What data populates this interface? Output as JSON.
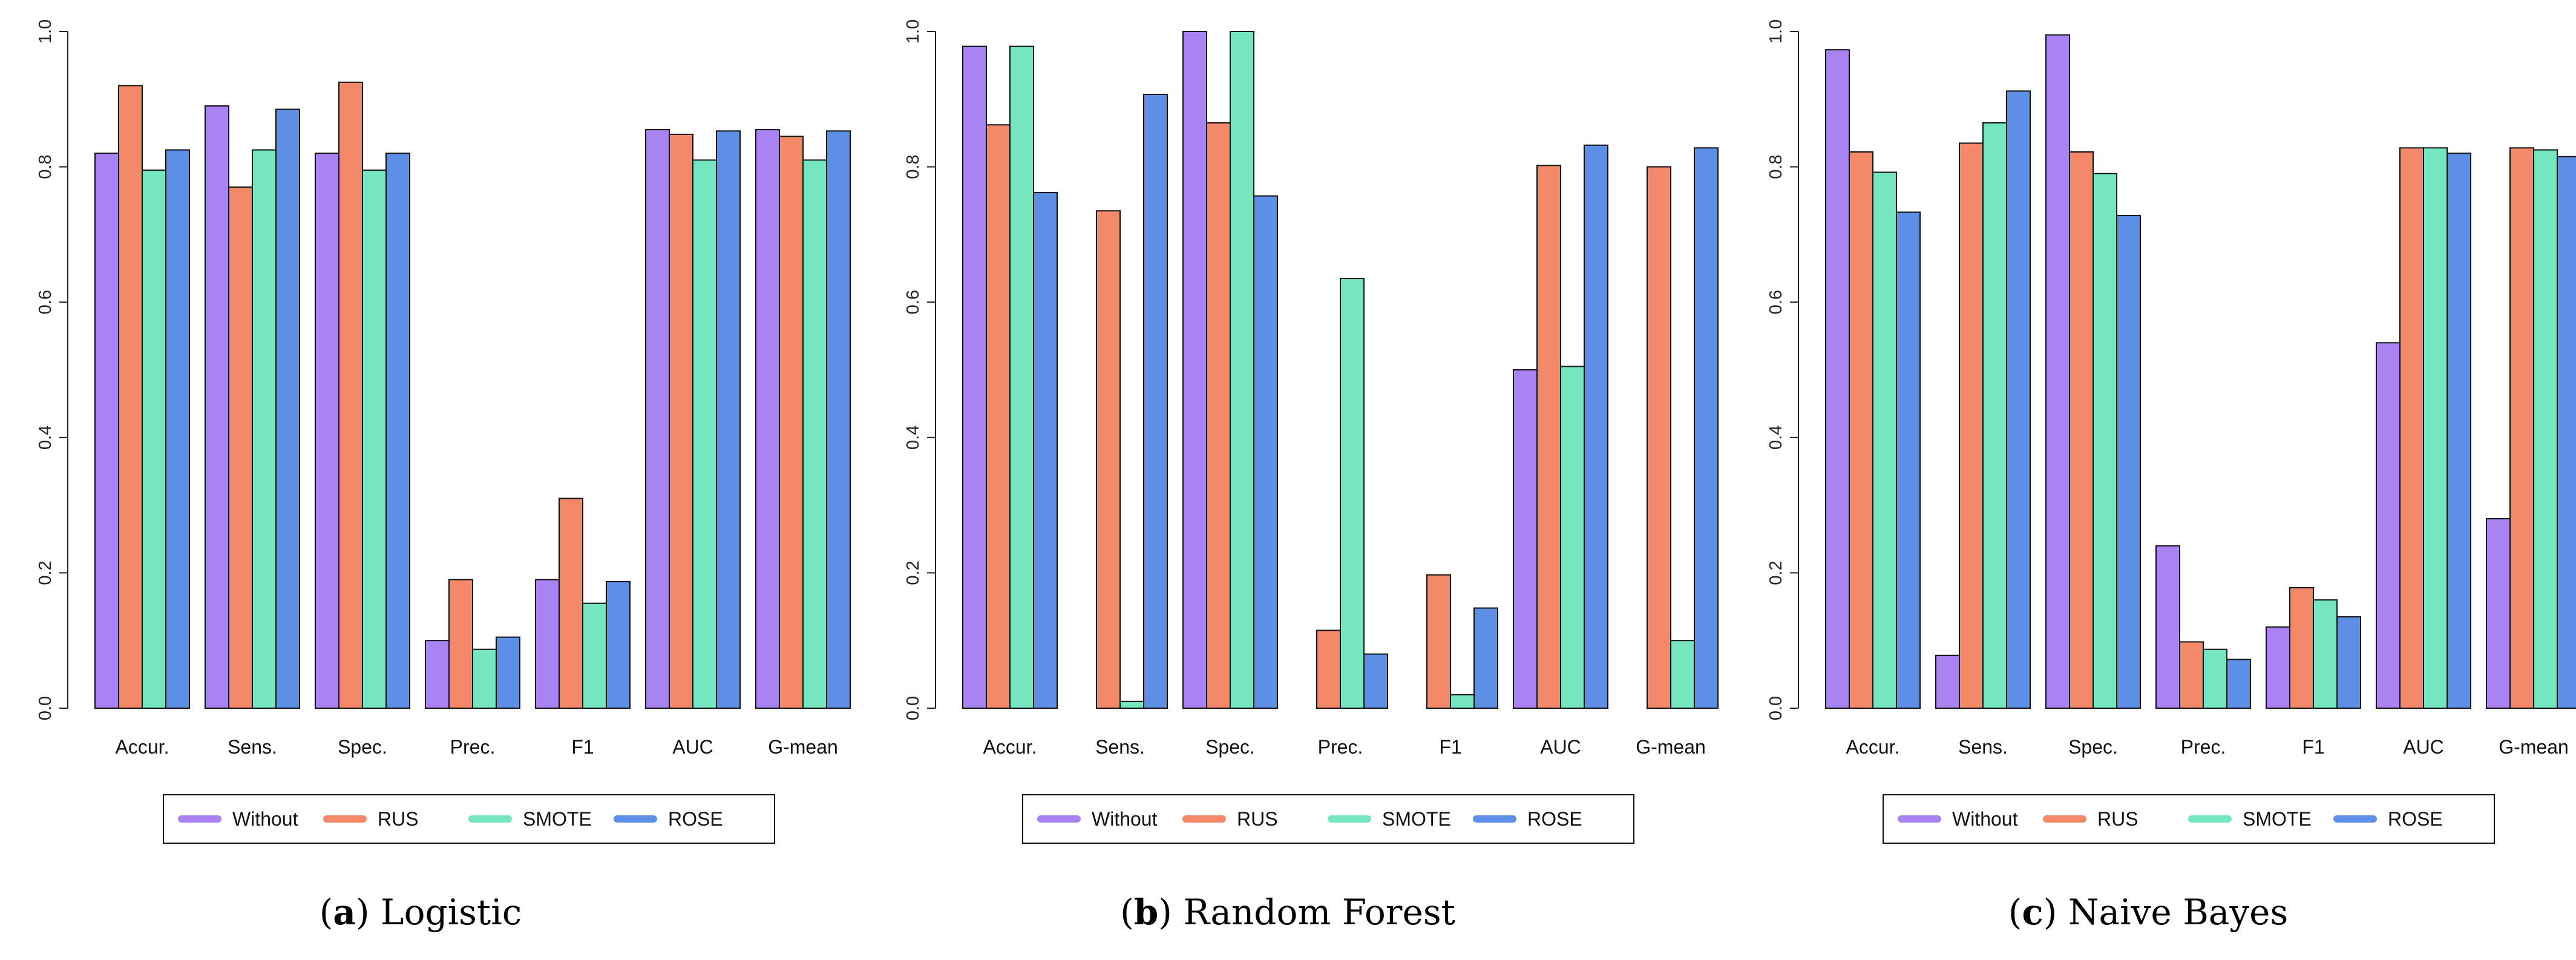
{
  "legend": {
    "entries": [
      "Without",
      "RUS",
      "SMOTE",
      "ROSE"
    ],
    "colors": [
      "#A983F2",
      "#F4896A",
      "#75E6BF",
      "#5E8FE6"
    ]
  },
  "chart_data": [
    {
      "type": "bar",
      "panel_label": "a",
      "title": "Logistic",
      "categories": [
        "Accur.",
        "Sens.",
        "Spec.",
        "Prec.",
        "F1",
        "AUC",
        "G-mean"
      ],
      "yticks": [
        "0.0",
        "0.2",
        "0.4",
        "0.6",
        "0.8",
        "1.0"
      ],
      "ylim": [
        0,
        1
      ],
      "series": [
        {
          "name": "Without",
          "values": [
            0.82,
            0.89,
            0.82,
            0.1,
            0.19,
            0.855,
            0.855
          ]
        },
        {
          "name": "RUS",
          "values": [
            0.92,
            0.77,
            0.925,
            0.19,
            0.31,
            0.848,
            0.845
          ]
        },
        {
          "name": "SMOTE",
          "values": [
            0.795,
            0.825,
            0.795,
            0.087,
            0.155,
            0.81,
            0.81
          ]
        },
        {
          "name": "ROSE",
          "values": [
            0.825,
            0.885,
            0.82,
            0.105,
            0.187,
            0.853,
            0.853
          ]
        }
      ]
    },
    {
      "type": "bar",
      "panel_label": "b",
      "title": "Random Forest",
      "categories": [
        "Accur.",
        "Sens.",
        "Spec.",
        "Prec.",
        "F1",
        "AUC",
        "G-mean"
      ],
      "yticks": [
        "0.0",
        "0.2",
        "0.4",
        "0.6",
        "0.8",
        "1.0"
      ],
      "ylim": [
        0,
        1
      ],
      "series": [
        {
          "name": "Without",
          "values": [
            0.978,
            0.0,
            1.0,
            0.0,
            0.0,
            0.5,
            0.0
          ]
        },
        {
          "name": "RUS",
          "values": [
            0.862,
            0.735,
            0.865,
            0.115,
            0.197,
            0.802,
            0.8
          ]
        },
        {
          "name": "SMOTE",
          "values": [
            0.978,
            0.01,
            1.0,
            0.635,
            0.02,
            0.505,
            0.1
          ]
        },
        {
          "name": "ROSE",
          "values": [
            0.762,
            0.907,
            0.757,
            0.08,
            0.148,
            0.832,
            0.828
          ]
        }
      ]
    },
    {
      "type": "bar",
      "panel_label": "c",
      "title": "Naive Bayes",
      "categories": [
        "Accur.",
        "Sens.",
        "Spec.",
        "Prec.",
        "F1",
        "AUC",
        "G-mean"
      ],
      "yticks": [
        "0.0",
        "0.2",
        "0.4",
        "0.6",
        "0.8",
        "1.0"
      ],
      "ylim": [
        0,
        1
      ],
      "series": [
        {
          "name": "Without",
          "values": [
            0.973,
            0.078,
            0.995,
            0.24,
            0.12,
            0.54,
            0.28
          ]
        },
        {
          "name": "RUS",
          "values": [
            0.822,
            0.835,
            0.822,
            0.098,
            0.178,
            0.828,
            0.828
          ]
        },
        {
          "name": "SMOTE",
          "values": [
            0.792,
            0.865,
            0.79,
            0.087,
            0.16,
            0.828,
            0.825
          ]
        },
        {
          "name": "ROSE",
          "values": [
            0.733,
            0.912,
            0.728,
            0.072,
            0.135,
            0.82,
            0.815
          ]
        }
      ]
    }
  ]
}
